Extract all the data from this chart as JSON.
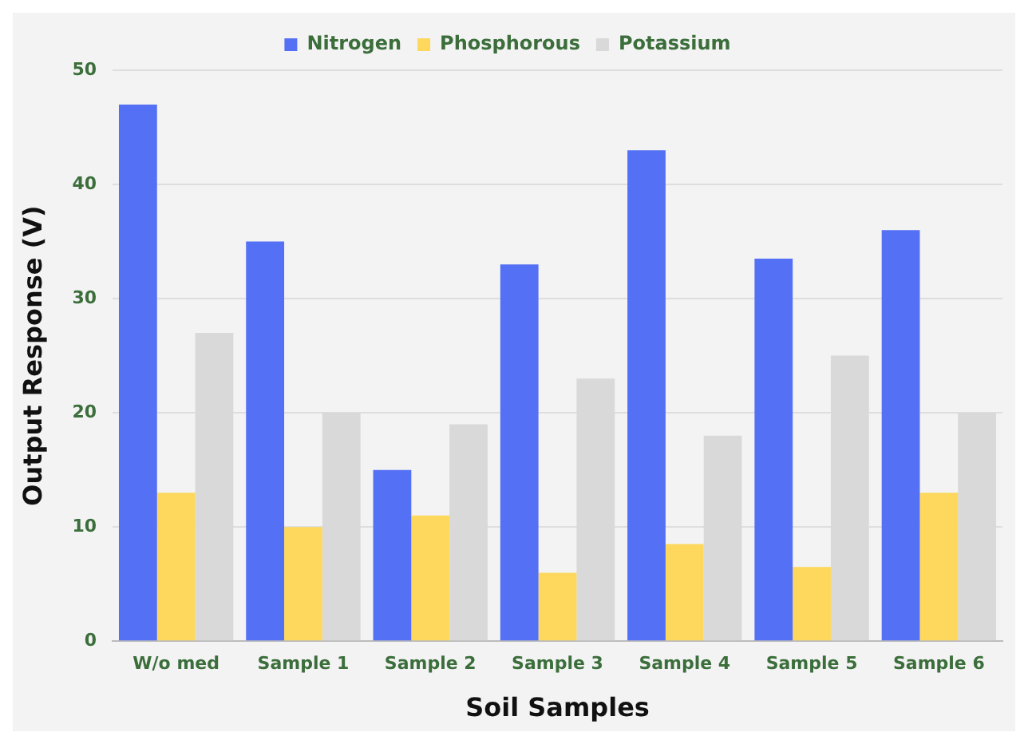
{
  "chart_data": {
    "type": "bar",
    "xlabel": "Soil Samples",
    "ylabel": "Output Response (V)",
    "categories": [
      "W/o med",
      "Sample 1",
      "Sample 2",
      "Sample 3",
      "Sample 4",
      "Sample 5",
      "Sample 6"
    ],
    "series": [
      {
        "name": "Nitrogen",
        "color": "#5470f5",
        "values": [
          47,
          35,
          15,
          33,
          43,
          33.5,
          36
        ]
      },
      {
        "name": "Phosphorous",
        "color": "#fdd85d",
        "values": [
          13,
          10,
          11,
          6,
          8.5,
          6.5,
          13
        ]
      },
      {
        "name": "Potassium",
        "color": "#d9d9d9",
        "values": [
          27,
          20,
          19,
          23,
          18,
          25,
          20
        ]
      }
    ],
    "ylim": [
      0,
      50
    ],
    "yticks": [
      0,
      10,
      20,
      30,
      40,
      50
    ],
    "grid": "y",
    "legend": "top"
  }
}
